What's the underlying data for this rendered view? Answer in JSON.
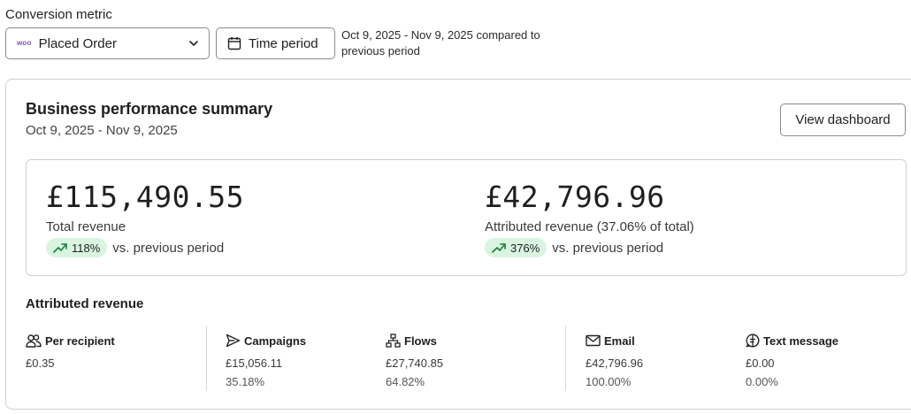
{
  "filters": {
    "conversion_label": "Conversion metric",
    "metric_logo": "woo",
    "metric_value": "Placed Order",
    "period_button": "Time period",
    "comparison_text": "Oct 9, 2025 - Nov 9, 2025 compared to previous period"
  },
  "summary": {
    "title": "Business performance summary",
    "date_range": "Oct 9, 2025 - Nov 9, 2025",
    "view_dashboard": "View dashboard"
  },
  "revenue": {
    "total": {
      "amount": "£115,490.55",
      "label": "Total revenue",
      "change": "118%",
      "change_suffix": "vs. previous period"
    },
    "attributed": {
      "amount": "£42,796.96",
      "label": "Attributed revenue (37.06% of total)",
      "change": "376%",
      "change_suffix": "vs. previous period"
    }
  },
  "attributed_section": {
    "title": "Attributed revenue",
    "metrics": [
      {
        "label": "Per recipient",
        "icon": "people-icon",
        "value": "£0.35",
        "percent": ""
      },
      {
        "label": "Campaigns",
        "icon": "send-icon",
        "value": "£15,056.11",
        "percent": "35.18%"
      },
      {
        "label": "Flows",
        "icon": "flows-icon",
        "value": "£27,740.85",
        "percent": "64.82%"
      },
      {
        "label": "Email",
        "icon": "mail-icon",
        "value": "£42,796.96",
        "percent": "100.00%"
      },
      {
        "label": "Text message",
        "icon": "message-icon",
        "value": "£0.00",
        "percent": "0.00%"
      }
    ]
  },
  "colors": {
    "pill_bg": "#d9f5e0",
    "trend_up": "#1a7f3c",
    "woo_purple": "#7f54b3",
    "border": "#cfcfcf"
  }
}
